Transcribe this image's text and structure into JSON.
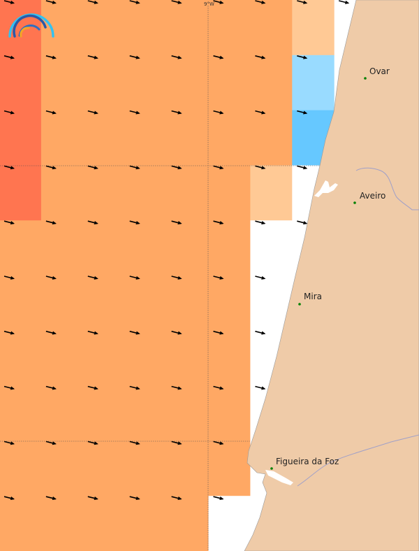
{
  "map": {
    "graticule_label": "9°W",
    "palette": {
      "R": "#ff7550",
      "O": "#ffa864",
      "P": "#ffc995",
      "LB": "#99dbff",
      "B": "#66c8ff",
      "W": "#ffffff"
    },
    "land_color": "#efcba8",
    "river_color": "#a0a0c8",
    "city_dot_color": "#008000",
    "cells": [
      [
        "R",
        "O",
        "O",
        "O",
        "O",
        "O",
        "O",
        "P"
      ],
      [
        "R",
        "O",
        "O",
        "O",
        "O",
        "O",
        "O",
        "LB"
      ],
      [
        "R",
        "O",
        "O",
        "O",
        "O",
        "O",
        "O",
        "B"
      ],
      [
        "R",
        "O",
        "O",
        "O",
        "O",
        "O",
        "P",
        "W"
      ],
      [
        "O",
        "O",
        "O",
        "O",
        "O",
        "O",
        "W",
        "W"
      ],
      [
        "O",
        "O",
        "O",
        "O",
        "O",
        "O",
        "W",
        "W"
      ],
      [
        "O",
        "O",
        "O",
        "O",
        "O",
        "O",
        "W",
        "W"
      ],
      [
        "O",
        "O",
        "O",
        "O",
        "O",
        "O",
        "W",
        "W"
      ],
      [
        "O",
        "O",
        "O",
        "O",
        "O",
        "O",
        "W",
        "W"
      ],
      [
        "O",
        "O",
        "O",
        "O",
        "O",
        "W",
        "W",
        "W"
      ]
    ],
    "arrow_direction_deg": 14,
    "cities": [
      {
        "name": "Ovar"
      },
      {
        "name": "Aveiro"
      },
      {
        "name": "Mira"
      },
      {
        "name": "Figueira da Foz"
      }
    ]
  }
}
